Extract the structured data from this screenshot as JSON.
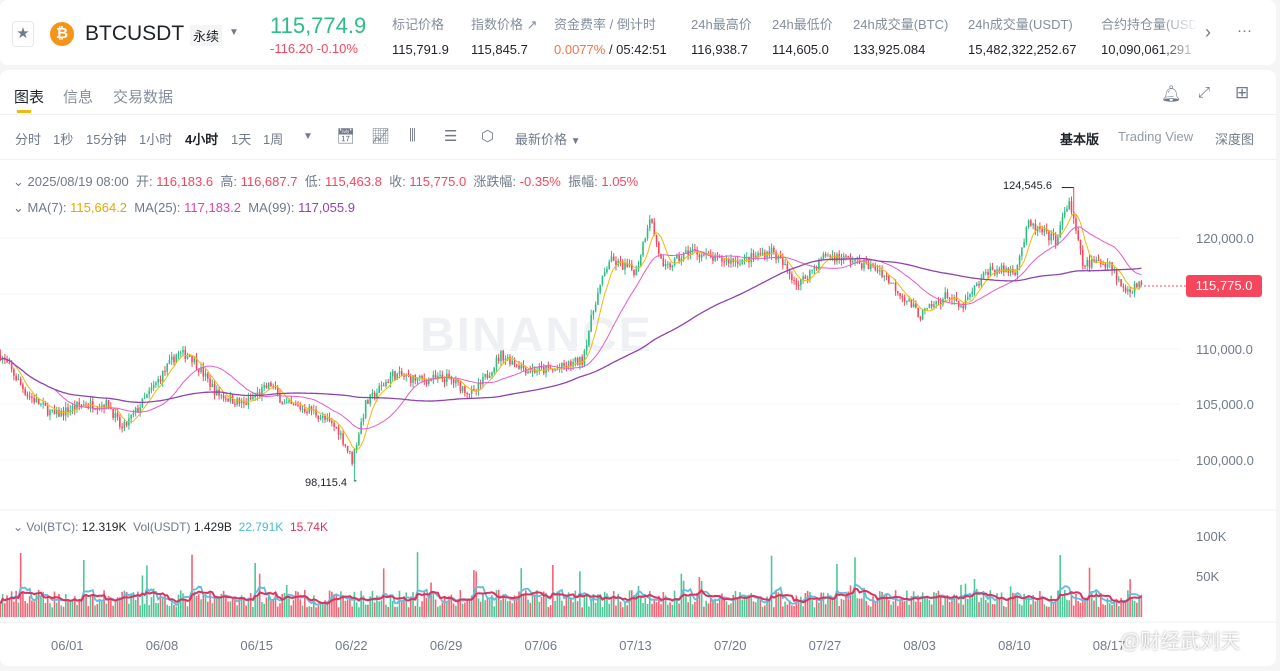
{
  "header": {
    "symbol": "BTCUSDT",
    "contract_type": "永续",
    "last_price": "115,774.9",
    "change": "-116.20",
    "change_pct": "-0.10%",
    "stats": [
      {
        "label": "标记价格",
        "value": "115,791.9"
      },
      {
        "label": "指数价格 ↗",
        "value": "115,845.7"
      },
      {
        "label": "资金费率 / 倒计时",
        "value": "0.0077%",
        "value2": " / 05:42:51"
      },
      {
        "label": "24h最高价",
        "value": "116,938.7"
      },
      {
        "label": "24h最低价",
        "value": "114,605.0"
      },
      {
        "label": "24h成交量(BTC)",
        "value": "133,925.084"
      },
      {
        "label": "24h成交量(USDT)",
        "value": "15,482,322,252.67"
      },
      {
        "label": "合约持仓量(USDT)",
        "value": "10,090,061,291"
      }
    ],
    "colors": {
      "up": "#2ebd85",
      "down": "#f6465d",
      "accent": "#f0b90b"
    }
  },
  "tabs": [
    "图表",
    "信息",
    "交易数据"
  ],
  "toolbar": {
    "intervals": [
      "分时",
      "1秒",
      "15分钟",
      "1小时",
      "4小时",
      "1天",
      "1周"
    ],
    "active": "4小时",
    "price_type": "最新价格",
    "views": [
      "基本版",
      "Trading View",
      "深度图"
    ],
    "active_view": "基本版"
  },
  "legend": {
    "date": "2025/08/19 08:00",
    "open_l": "开:",
    "open": "116,183.6",
    "high_l": "高:",
    "high": "116,687.7",
    "low_l": "低:",
    "low": "115,463.8",
    "close_l": "收:",
    "close": "115,775.0",
    "chg_l": "涨跌幅:",
    "chg": "-0.35%",
    "amp_l": "振幅:",
    "amp": "1.05%",
    "ma7_l": "MA(7):",
    "ma7": "115,664.2",
    "ma25_l": "MA(25):",
    "ma25": "117,183.2",
    "ma99_l": "MA(99):",
    "ma99": "117,055.9"
  },
  "vol_legend": {
    "btc_l": "Vol(BTC):",
    "btc": "12.319K",
    "usdt_l": "Vol(USDT)",
    "usdt": "1.429B",
    "ma1": "22.791K",
    "ma2": "15.74K"
  },
  "watermark": "BINANCE",
  "overlay_watermark": "@财经武刘天",
  "chart_data": {
    "type": "candlestick",
    "interval": "4h",
    "price_ticks": [
      "120,000.0",
      "110,000.0",
      "105,000.0",
      "100,000.0"
    ],
    "current_price_label": "115,775.0",
    "max_label": "124,545.6",
    "min_label": "98,115.4",
    "volume_ticks": [
      "100K",
      "50K"
    ],
    "x_ticks": [
      "06/01",
      "06/08",
      "06/15",
      "06/22",
      "06/29",
      "07/06",
      "07/13",
      "07/20",
      "07/27",
      "08/03",
      "08/10",
      "08/17"
    ],
    "approx_closes": [
      [
        "05/27",
        109500
      ],
      [
        "05/29",
        105900
      ],
      [
        "05/31",
        104000
      ],
      [
        "06/02",
        105000
      ],
      [
        "06/04",
        105000
      ],
      [
        "06/05",
        102700
      ],
      [
        "06/07",
        106000
      ],
      [
        "06/09",
        109500
      ],
      [
        "06/10",
        109500
      ],
      [
        "06/12",
        106000
      ],
      [
        "06/14",
        105000
      ],
      [
        "06/16",
        106800
      ],
      [
        "06/17",
        105000
      ],
      [
        "06/19",
        104500
      ],
      [
        "06/21",
        102700
      ],
      [
        "06/22",
        100000
      ],
      [
        "06/23",
        105000
      ],
      [
        "06/25",
        107700
      ],
      [
        "06/27",
        107200
      ],
      [
        "06/29",
        107400
      ],
      [
        "07/01",
        105900
      ],
      [
        "07/03",
        109500
      ],
      [
        "07/05",
        108100
      ],
      [
        "07/07",
        108100
      ],
      [
        "07/09",
        109000
      ],
      [
        "07/10",
        114400
      ],
      [
        "07/11",
        118000
      ],
      [
        "07/13",
        117000
      ],
      [
        "07/14",
        122000
      ],
      [
        "07/15",
        117100
      ],
      [
        "07/17",
        118900
      ],
      [
        "07/19",
        118000
      ],
      [
        "07/21",
        118000
      ],
      [
        "07/23",
        118900
      ],
      [
        "07/25",
        115800
      ],
      [
        "07/27",
        118500
      ],
      [
        "07/29",
        118000
      ],
      [
        "07/31",
        117100
      ],
      [
        "08/02",
        114400
      ],
      [
        "08/03",
        113000
      ],
      [
        "08/05",
        114900
      ],
      [
        "08/06",
        113600
      ],
      [
        "08/08",
        117100
      ],
      [
        "08/10",
        117100
      ],
      [
        "08/11",
        121200
      ],
      [
        "08/13",
        119800
      ],
      [
        "08/14",
        123400
      ],
      [
        "08/15",
        117600
      ],
      [
        "08/16",
        117800
      ],
      [
        "08/17",
        117800
      ],
      [
        "08/18",
        115300
      ],
      [
        "08/19",
        115775
      ]
    ]
  }
}
